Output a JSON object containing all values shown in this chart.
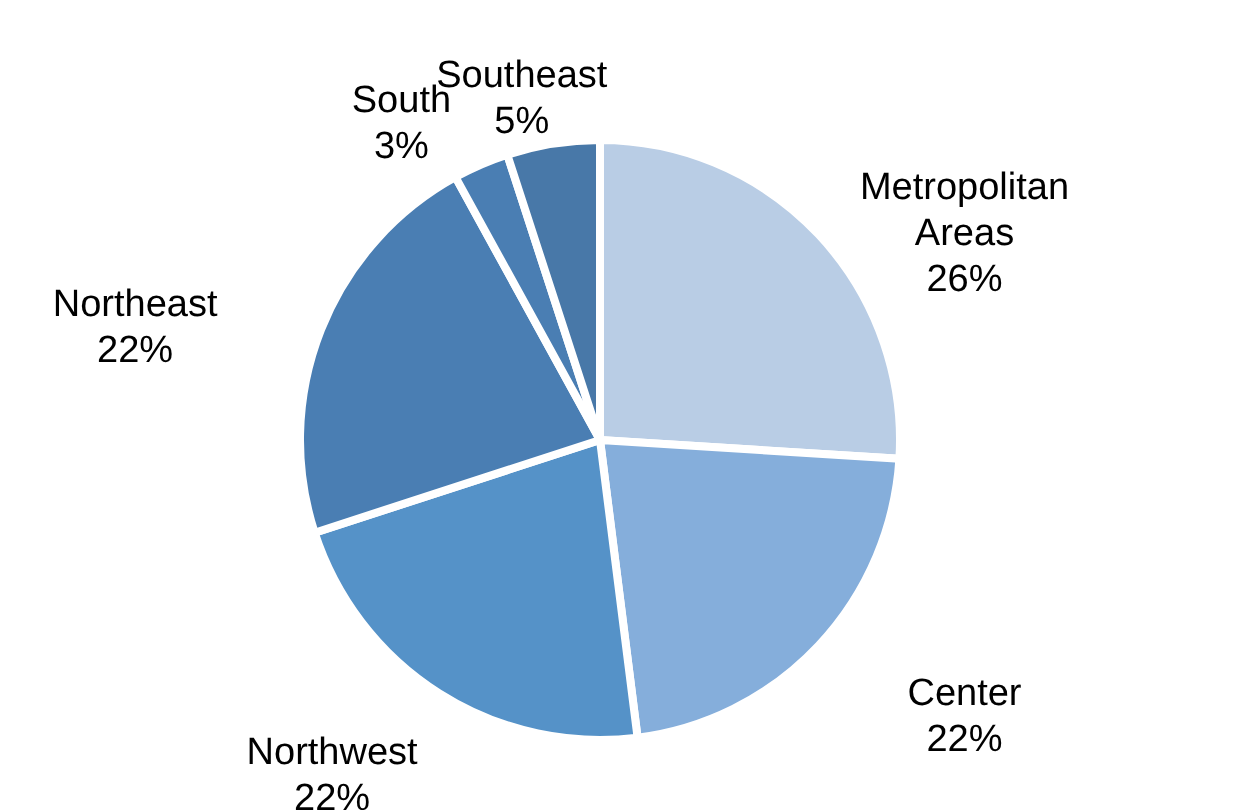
{
  "chart_data": {
    "type": "pie",
    "categories": [
      "Metropolitan Areas",
      "Center",
      "Northwest",
      "Northeast",
      "South",
      "Southeast"
    ],
    "values": [
      26,
      22,
      22,
      22,
      3,
      5
    ],
    "value_labels": [
      "26%",
      "22%",
      "22%",
      "22%",
      "3%",
      "5%"
    ],
    "colors": [
      "#b9cde5",
      "#85aedb",
      "#5592c8",
      "#4a7eb3",
      "#4a7eb3",
      "#4878a8"
    ]
  }
}
